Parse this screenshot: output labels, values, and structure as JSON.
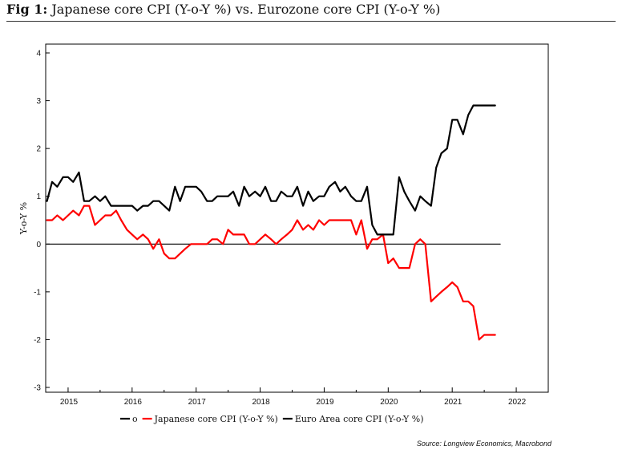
{
  "figure": {
    "label": "Fig 1:",
    "title": "Japanese core CPI (Y-o-Y %) vs. Eurozone core CPI (Y-o-Y %)",
    "source": "Source: Longview Economics, Macrobond"
  },
  "chart_data": {
    "type": "line",
    "ylabel": "Y-o-Y %",
    "ylim": [
      -3,
      4
    ],
    "yticks": [
      -3,
      -2,
      -1,
      0,
      1,
      2,
      3,
      4
    ],
    "xlim": [
      2014.65,
      2022.5
    ],
    "xtick_positions": [
      2015,
      2016,
      2017,
      2018,
      2019,
      2020,
      2021,
      2022
    ],
    "xtick_labels": [
      "2015",
      "2016",
      "2017",
      "2018",
      "2019",
      "2020",
      "2021",
      "2022"
    ],
    "grid": false,
    "legend_position": "bottom",
    "series": [
      {
        "name": "o",
        "color": "#000000",
        "width": 1.2,
        "x": [
          2014.67,
          2021.75
        ],
        "y": [
          0,
          0
        ]
      },
      {
        "name": "Japanese core CPI (Y-o-Y %)",
        "color": "#ff0000",
        "width": 2.2,
        "x": [
          2014.67,
          2014.75,
          2014.83,
          2014.92,
          2015.0,
          2015.08,
          2015.17,
          2015.25,
          2015.33,
          2015.42,
          2015.5,
          2015.58,
          2015.67,
          2015.75,
          2015.83,
          2015.92,
          2016.0,
          2016.08,
          2016.17,
          2016.25,
          2016.33,
          2016.42,
          2016.5,
          2016.58,
          2016.67,
          2016.75,
          2016.83,
          2016.92,
          2017.0,
          2017.08,
          2017.17,
          2017.25,
          2017.33,
          2017.42,
          2017.5,
          2017.58,
          2017.67,
          2017.75,
          2017.83,
          2017.92,
          2018.0,
          2018.08,
          2018.17,
          2018.25,
          2018.33,
          2018.42,
          2018.5,
          2018.58,
          2018.67,
          2018.75,
          2018.83,
          2018.92,
          2019.0,
          2019.08,
          2019.17,
          2019.25,
          2019.33,
          2019.42,
          2019.5,
          2019.58,
          2019.67,
          2019.75,
          2019.83,
          2019.92,
          2020.0,
          2020.08,
          2020.17,
          2020.25,
          2020.33,
          2020.42,
          2020.5,
          2020.58,
          2020.67,
          2020.75,
          2020.83,
          2020.92,
          2021.0,
          2021.08,
          2021.17,
          2021.25,
          2021.33,
          2021.42,
          2021.5,
          2021.58,
          2021.67
        ],
        "y": [
          0.5,
          0.5,
          0.6,
          0.5,
          0.6,
          0.7,
          0.6,
          0.8,
          0.8,
          0.4,
          0.5,
          0.6,
          0.6,
          0.7,
          0.5,
          0.3,
          0.2,
          0.1,
          0.2,
          0.1,
          -0.1,
          0.1,
          -0.2,
          -0.3,
          -0.3,
          -0.2,
          -0.1,
          0.0,
          0.0,
          0.0,
          0.0,
          0.1,
          0.1,
          0.0,
          0.3,
          0.2,
          0.2,
          0.2,
          0.0,
          0.0,
          0.1,
          0.2,
          0.1,
          0.0,
          0.1,
          0.2,
          0.3,
          0.5,
          0.3,
          0.4,
          0.3,
          0.5,
          0.4,
          0.5,
          0.5,
          0.5,
          0.5,
          0.5,
          0.2,
          0.5,
          -0.1,
          0.1,
          0.1,
          0.2,
          -0.4,
          -0.3,
          -0.5,
          -0.5,
          -0.5,
          0.0,
          0.1,
          0.0,
          -1.2,
          -1.1,
          -1.0,
          -0.9,
          -0.8,
          -0.9,
          -1.2,
          -1.2,
          -1.3,
          -2.0,
          -1.9,
          -1.9,
          -1.9
        ]
      },
      {
        "name": "Euro Area core CPI (Y-o-Y %)",
        "color": "#000000",
        "width": 2.2,
        "x": [
          2014.67,
          2014.75,
          2014.83,
          2014.92,
          2015.0,
          2015.08,
          2015.17,
          2015.25,
          2015.33,
          2015.42,
          2015.5,
          2015.58,
          2015.67,
          2015.75,
          2015.83,
          2015.92,
          2016.0,
          2016.08,
          2016.17,
          2016.25,
          2016.33,
          2016.42,
          2016.5,
          2016.58,
          2016.67,
          2016.75,
          2016.83,
          2016.92,
          2017.0,
          2017.08,
          2017.17,
          2017.25,
          2017.33,
          2017.42,
          2017.5,
          2017.58,
          2017.67,
          2017.75,
          2017.83,
          2017.92,
          2018.0,
          2018.08,
          2018.17,
          2018.25,
          2018.33,
          2018.42,
          2018.5,
          2018.58,
          2018.67,
          2018.75,
          2018.83,
          2018.92,
          2019.0,
          2019.08,
          2019.17,
          2019.25,
          2019.33,
          2019.42,
          2019.5,
          2019.58,
          2019.67,
          2019.75,
          2019.83,
          2019.92,
          2020.0,
          2020.08,
          2020.17,
          2020.25,
          2020.33,
          2020.42,
          2020.5,
          2020.58,
          2020.67,
          2020.75,
          2020.83,
          2020.92,
          2021.0,
          2021.08,
          2021.17,
          2021.25,
          2021.33,
          2021.42,
          2021.5,
          2021.58,
          2021.67
        ],
        "y": [
          0.9,
          1.3,
          1.2,
          1.4,
          1.4,
          1.3,
          1.5,
          0.9,
          0.9,
          1.0,
          0.9,
          1.0,
          0.8,
          0.8,
          0.8,
          0.8,
          0.8,
          0.7,
          0.8,
          0.8,
          0.9,
          0.9,
          0.8,
          0.7,
          1.2,
          0.9,
          1.2,
          1.2,
          1.2,
          1.1,
          0.9,
          0.9,
          1.0,
          1.0,
          1.0,
          1.1,
          0.8,
          1.2,
          1.0,
          1.1,
          1.0,
          1.2,
          0.9,
          0.9,
          1.1,
          1.0,
          1.0,
          1.2,
          0.8,
          1.1,
          0.9,
          1.0,
          1.0,
          1.2,
          1.3,
          1.1,
          1.2,
          1.0,
          0.9,
          0.9,
          1.2,
          0.4,
          0.2,
          0.2,
          0.2,
          0.2,
          1.4,
          1.1,
          0.9,
          0.7,
          1.0,
          0.9,
          0.8,
          1.6,
          1.9,
          2.0,
          2.6,
          2.6,
          2.3,
          2.7,
          2.9,
          2.9,
          2.9,
          2.9,
          2.9
        ]
      }
    ],
    "legend": [
      {
        "label": "o",
        "color": "#000000"
      },
      {
        "label": "Japanese core CPI (Y-o-Y %)",
        "color": "#ff0000"
      },
      {
        "label": "Euro Area core CPI (Y-o-Y %)",
        "color": "#000000"
      }
    ]
  }
}
